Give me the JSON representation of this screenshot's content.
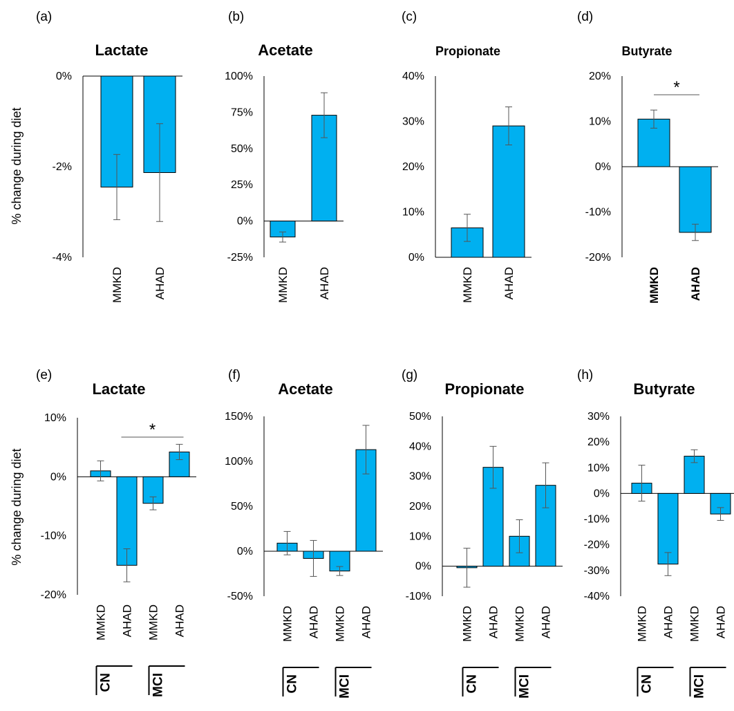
{
  "ylabel": "% change during diet",
  "chart_data": [
    {
      "panel": "(a)",
      "title": "Lactate",
      "type": "bar",
      "categories": [
        "MMKD",
        "AHAD"
      ],
      "values": [
        -2.45,
        -2.13
      ],
      "errors": [
        0.72,
        1.08
      ],
      "ylim": [
        -4,
        0
      ],
      "yticks": [
        0,
        -2,
        -4
      ],
      "tick_labels": [
        "0%",
        "-2%",
        "-4%"
      ]
    },
    {
      "panel": "(b)",
      "title": "Acetate",
      "type": "bar",
      "categories": [
        "MMKD",
        "AHAD"
      ],
      "values": [
        -11,
        73
      ],
      "errors": [
        3.5,
        15.5
      ],
      "ylim": [
        -25,
        100
      ],
      "yticks": [
        100,
        75,
        50,
        25,
        0,
        -25
      ],
      "tick_labels": [
        "100%",
        "75%",
        "50%",
        "25%",
        "0%",
        "-25%"
      ]
    },
    {
      "panel": "(c)",
      "title": "Propionate",
      "type": "bar",
      "categories": [
        "MMKD",
        "AHAD"
      ],
      "values": [
        6.5,
        29
      ],
      "errors": [
        3,
        4.2
      ],
      "ylim": [
        0,
        40
      ],
      "yticks": [
        40,
        30,
        20,
        10,
        0
      ],
      "tick_labels": [
        "40%",
        "30%",
        "20%",
        "10%",
        "0%"
      ]
    },
    {
      "panel": "(d)",
      "title": "Butyrate",
      "type": "bar",
      "categories": [
        "MMKD",
        "AHAD"
      ],
      "values": [
        10.5,
        -14.5
      ],
      "errors": [
        2,
        1.8
      ],
      "ylim": [
        -20,
        20
      ],
      "yticks": [
        20,
        10,
        0,
        -10,
        -20
      ],
      "tick_labels": [
        "20%",
        "10%",
        "0%",
        "-10%",
        "-20%"
      ],
      "significance": "*"
    },
    {
      "panel": "(e)",
      "title": "Lactate",
      "type": "bar",
      "categories": [
        "MMKD",
        "AHAD",
        "MMKD",
        "AHAD"
      ],
      "groups": [
        "CN",
        "MCI"
      ],
      "values": [
        1,
        -15,
        -4.5,
        4.2
      ],
      "errors": [
        1.7,
        2.8,
        1.1,
        1.3
      ],
      "ylim": [
        -20,
        10
      ],
      "yticks": [
        10,
        0,
        -10,
        -20
      ],
      "tick_labels": [
        "10%",
        "0%",
        "-10%",
        "-20%"
      ],
      "significance": "*"
    },
    {
      "panel": "(f)",
      "title": "Acetate",
      "type": "bar",
      "categories": [
        "MMKD",
        "AHAD",
        "MMKD",
        "AHAD"
      ],
      "groups": [
        "CN",
        "MCI"
      ],
      "values": [
        9,
        -8,
        -22,
        113
      ],
      "errors": [
        13,
        20,
        5,
        27
      ],
      "ylim": [
        -50,
        150
      ],
      "yticks": [
        150,
        100,
        50,
        0,
        -50
      ],
      "tick_labels": [
        "150%",
        "100%",
        "50%",
        "0%",
        "-50%"
      ]
    },
    {
      "panel": "(g)",
      "title": "Propionate",
      "type": "bar",
      "categories": [
        "MMKD",
        "AHAD",
        "MMKD",
        "AHAD"
      ],
      "groups": [
        "CN",
        "MCI"
      ],
      "values": [
        -0.5,
        33,
        10,
        27
      ],
      "errors": [
        6.5,
        7,
        5.5,
        7.5
      ],
      "ylim": [
        -10,
        50
      ],
      "yticks": [
        50,
        40,
        30,
        20,
        10,
        0,
        -10
      ],
      "tick_labels": [
        "50%",
        "40%",
        "30%",
        "20%",
        "10%",
        "0%",
        "-10%"
      ]
    },
    {
      "panel": "(h)",
      "title": "Butyrate",
      "type": "bar",
      "categories": [
        "MMKD",
        "AHAD",
        "MMKD",
        "AHAD"
      ],
      "groups": [
        "CN",
        "MCI"
      ],
      "values": [
        4,
        -27.5,
        14.5,
        -8
      ],
      "errors": [
        7,
        4.5,
        2.5,
        2.5
      ],
      "ylim": [
        -40,
        30
      ],
      "yticks": [
        30,
        20,
        10,
        0,
        -10,
        -20,
        -30,
        -40
      ],
      "tick_labels": [
        "30%",
        "20%",
        "10%",
        "0%",
        "-10%",
        "-20%",
        "-30%",
        "-40%"
      ]
    }
  ],
  "colors": {
    "bar": "#00b0f0",
    "bar_edge": "#000000",
    "error": "#555555"
  }
}
